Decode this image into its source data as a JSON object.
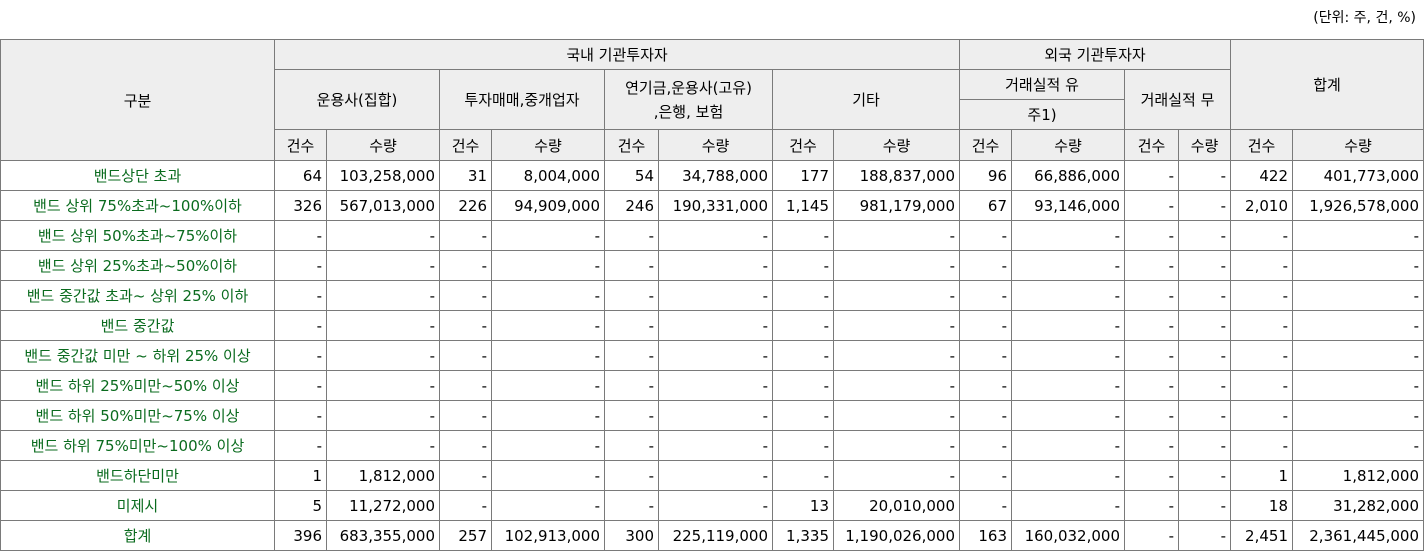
{
  "unit_note": "(단위: 주, 건, %)",
  "header": {
    "category": "구분",
    "domestic": "국내 기관투자자",
    "foreign": "외국 기관투자자",
    "total": "합계",
    "asset_mgmt_collective": "운용사(집합)",
    "brokerage": "투자매매,중개업자",
    "pension_line1": "연기금,운용사(고유)",
    "pension_line2": ",은행, 보험",
    "other": "기타",
    "foreign_with_line1": "거래실적 유",
    "foreign_with_line2": "주1)",
    "foreign_without": "거래실적 무",
    "count": "건수",
    "quantity": "수량"
  },
  "rows": [
    {
      "label": "밴드상단 초과",
      "v": [
        "64",
        "103,258,000",
        "31",
        "8,004,000",
        "54",
        "34,788,000",
        "177",
        "188,837,000",
        "96",
        "66,886,000",
        "-",
        "-",
        "422",
        "401,773,000"
      ]
    },
    {
      "label": "밴드 상위 75%초과~100%이하",
      "v": [
        "326",
        "567,013,000",
        "226",
        "94,909,000",
        "246",
        "190,331,000",
        "1,145",
        "981,179,000",
        "67",
        "93,146,000",
        "-",
        "-",
        "2,010",
        "1,926,578,000"
      ]
    },
    {
      "label": "밴드 상위 50%초과~75%이하",
      "v": [
        "-",
        "-",
        "-",
        "-",
        "-",
        "-",
        "-",
        "-",
        "-",
        "-",
        "-",
        "-",
        "-",
        "-"
      ]
    },
    {
      "label": "밴드 상위 25%초과~50%이하",
      "v": [
        "-",
        "-",
        "-",
        "-",
        "-",
        "-",
        "-",
        "-",
        "-",
        "-",
        "-",
        "-",
        "-",
        "-"
      ]
    },
    {
      "label": "밴드 중간값 초과~ 상위 25% 이하",
      "v": [
        "-",
        "-",
        "-",
        "-",
        "-",
        "-",
        "-",
        "-",
        "-",
        "-",
        "-",
        "-",
        "-",
        "-"
      ]
    },
    {
      "label": "밴드 중간값",
      "v": [
        "-",
        "-",
        "-",
        "-",
        "-",
        "-",
        "-",
        "-",
        "-",
        "-",
        "-",
        "-",
        "-",
        "-"
      ]
    },
    {
      "label": "밴드 중간값 미만 ~ 하위 25% 이상",
      "v": [
        "-",
        "-",
        "-",
        "-",
        "-",
        "-",
        "-",
        "-",
        "-",
        "-",
        "-",
        "-",
        "-",
        "-"
      ]
    },
    {
      "label": "밴드 하위 25%미만~50% 이상",
      "v": [
        "-",
        "-",
        "-",
        "-",
        "-",
        "-",
        "-",
        "-",
        "-",
        "-",
        "-",
        "-",
        "-",
        "-"
      ]
    },
    {
      "label": "밴드 하위 50%미만~75% 이상",
      "v": [
        "-",
        "-",
        "-",
        "-",
        "-",
        "-",
        "-",
        "-",
        "-",
        "-",
        "-",
        "-",
        "-",
        "-"
      ]
    },
    {
      "label": "밴드 하위 75%미만~100% 이상",
      "v": [
        "-",
        "-",
        "-",
        "-",
        "-",
        "-",
        "-",
        "-",
        "-",
        "-",
        "-",
        "-",
        "-",
        "-"
      ]
    },
    {
      "label": "밴드하단미만",
      "v": [
        "1",
        "1,812,000",
        "-",
        "-",
        "-",
        "-",
        "-",
        "-",
        "-",
        "-",
        "-",
        "-",
        "1",
        "1,812,000"
      ]
    },
    {
      "label": "미제시",
      "v": [
        "5",
        "11,272,000",
        "-",
        "-",
        "-",
        "-",
        "13",
        "20,010,000",
        "-",
        "-",
        "-",
        "-",
        "18",
        "31,282,000"
      ]
    },
    {
      "label": "합계",
      "v": [
        "396",
        "683,355,000",
        "257",
        "102,913,000",
        "300",
        "225,119,000",
        "1,335",
        "1,190,026,000",
        "163",
        "160,032,000",
        "-",
        "-",
        "2,451",
        "2,361,445,000"
      ]
    }
  ]
}
